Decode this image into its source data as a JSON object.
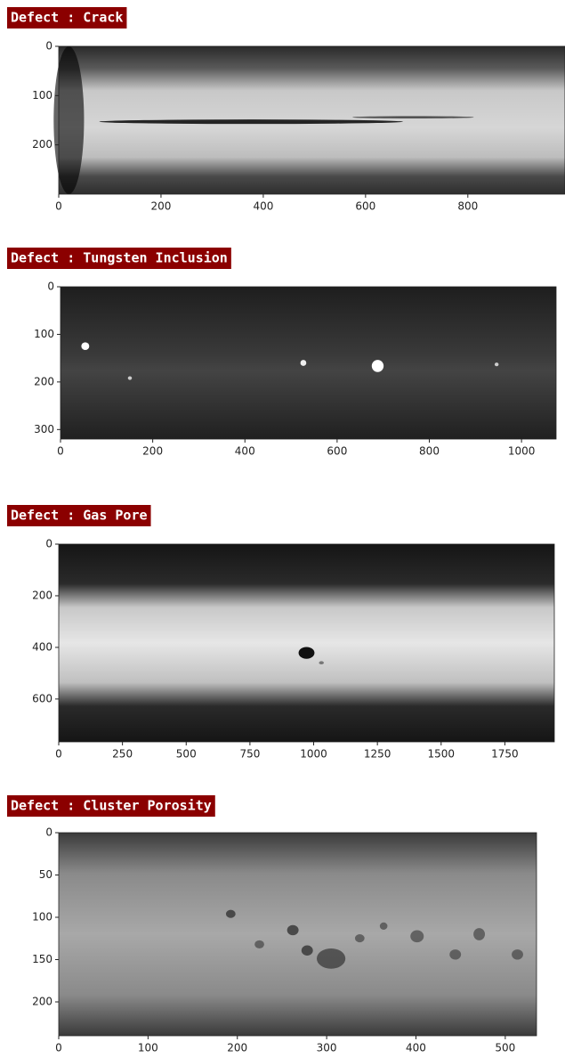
{
  "chart_data": [
    {
      "type": "image",
      "title": "Defect : Crack",
      "xlim": [
        0,
        990
      ],
      "ylim": [
        300,
        0
      ],
      "xticks": [
        0,
        200,
        400,
        600,
        800
      ],
      "yticks": [
        0,
        100,
        200
      ]
    },
    {
      "type": "image",
      "title": "Defect : Tungsten Inclusion",
      "xlim": [
        0,
        1075
      ],
      "ylim": [
        320,
        0
      ],
      "xticks": [
        0,
        200,
        400,
        600,
        800,
        1000
      ],
      "yticks": [
        0,
        100,
        200,
        300
      ]
    },
    {
      "type": "image",
      "title": "Defect : Gas Pore",
      "xlim": [
        0,
        1944
      ],
      "ylim": [
        766,
        0
      ],
      "xticks": [
        0,
        250,
        500,
        750,
        1000,
        1250,
        1500,
        1750
      ],
      "yticks": [
        0,
        200,
        400,
        600
      ]
    },
    {
      "type": "image",
      "title": "Defect : Cluster Porosity",
      "xlim": [
        0,
        535
      ],
      "ylim": [
        240,
        0
      ],
      "xticks": [
        0,
        100,
        200,
        300,
        400,
        500
      ],
      "yticks": [
        0,
        50,
        100,
        150,
        200
      ]
    }
  ]
}
